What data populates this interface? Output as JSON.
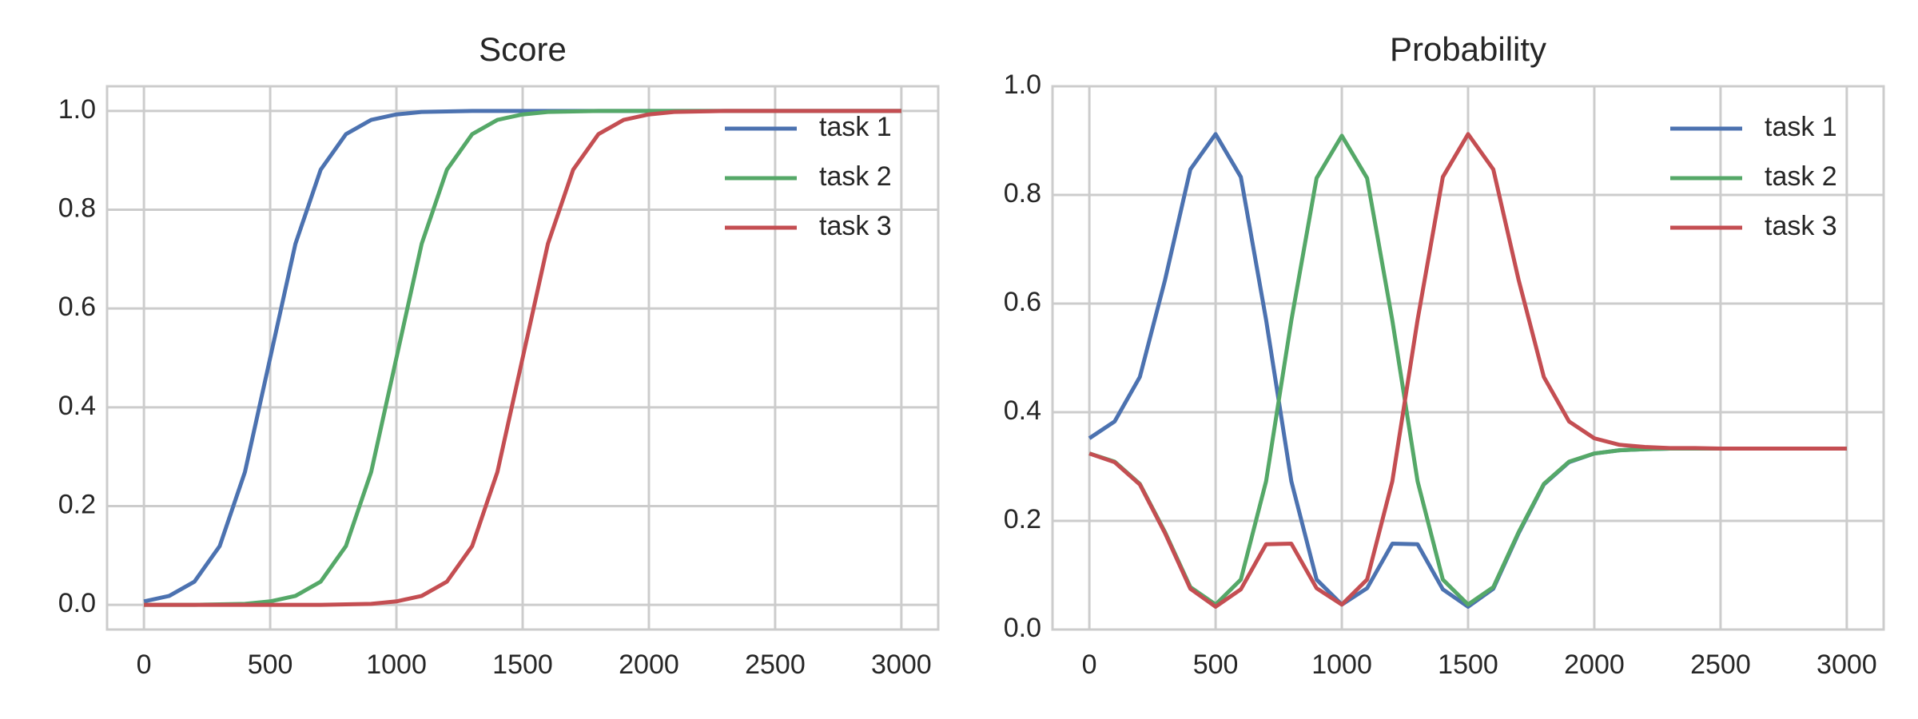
{
  "chart_data": [
    {
      "type": "line",
      "title": "Score",
      "x": [
        0,
        100,
        200,
        300,
        400,
        500,
        600,
        700,
        800,
        900,
        1000,
        1100,
        1200,
        1300,
        1400,
        1500,
        1600,
        1700,
        1800,
        1900,
        2000,
        2100,
        2200,
        2300,
        2400,
        2500,
        2600,
        2700,
        2800,
        2900,
        3000
      ],
      "series": [
        {
          "name": "task 1",
          "color": "#4c72b0",
          "values": [
            0.007,
            0.018,
            0.047,
            0.119,
            0.269,
            0.5,
            0.731,
            0.881,
            0.953,
            0.982,
            0.993,
            0.998,
            0.999,
            1,
            1,
            1,
            1,
            1,
            1,
            1,
            1,
            1,
            1,
            1,
            1,
            1,
            1,
            1,
            1,
            1,
            1
          ]
        },
        {
          "name": "task 2",
          "color": "#55a868",
          "values": [
            0,
            0,
            0,
            0.001,
            0.002,
            0.007,
            0.018,
            0.047,
            0.119,
            0.269,
            0.5,
            0.731,
            0.881,
            0.953,
            0.982,
            0.993,
            0.998,
            0.999,
            1,
            1,
            1,
            1,
            1,
            1,
            1,
            1,
            1,
            1,
            1,
            1,
            1
          ]
        },
        {
          "name": "task 3",
          "color": "#c44e52",
          "values": [
            0,
            0,
            0,
            0,
            0,
            0,
            0,
            0,
            0.001,
            0.002,
            0.007,
            0.018,
            0.047,
            0.119,
            0.269,
            0.5,
            0.731,
            0.881,
            0.953,
            0.982,
            0.993,
            0.998,
            0.999,
            1,
            1,
            1,
            1,
            1,
            1,
            1,
            1
          ]
        }
      ],
      "xlim": [
        -146,
        3146
      ],
      "ylim": [
        -0.05,
        1.05
      ],
      "xticks": [
        0,
        500,
        1000,
        1500,
        2000,
        2500,
        3000
      ],
      "yticks": [
        {
          "value": 0,
          "label": "0.0"
        },
        {
          "value": 0.2,
          "label": "0.2"
        },
        {
          "value": 0.4,
          "label": "0.4"
        },
        {
          "value": 0.6,
          "label": "0.6"
        },
        {
          "value": 0.8,
          "label": "0.8"
        },
        {
          "value": 1,
          "label": "1.0"
        }
      ],
      "grid": true,
      "legend": "upper right"
    },
    {
      "type": "line",
      "title": "Probability",
      "x": [
        0,
        100,
        200,
        300,
        400,
        500,
        600,
        700,
        800,
        900,
        1000,
        1100,
        1200,
        1300,
        1400,
        1500,
        1600,
        1700,
        1800,
        1900,
        2000,
        2100,
        2200,
        2300,
        2400,
        2500,
        2600,
        2700,
        2800,
        2900,
        3000
      ],
      "series": [
        {
          "name": "task 1",
          "color": "#4c72b0",
          "values": [
            0.352,
            0.383,
            0.465,
            0.644,
            0.847,
            0.912,
            0.833,
            0.57,
            0.273,
            0.092,
            0.046,
            0.076,
            0.158,
            0.157,
            0.074,
            0.042,
            0.075,
            0.177,
            0.267,
            0.308,
            0.324,
            0.33,
            0.332,
            0.333,
            0.333,
            0.333,
            0.333,
            0.333,
            0.333,
            0.333,
            0.333
          ]
        },
        {
          "name": "task 2",
          "color": "#55a868",
          "values": [
            0.324,
            0.309,
            0.268,
            0.179,
            0.078,
            0.046,
            0.092,
            0.273,
            0.569,
            0.831,
            0.909,
            0.831,
            0.569,
            0.273,
            0.092,
            0.046,
            0.078,
            0.179,
            0.268,
            0.309,
            0.324,
            0.33,
            0.332,
            0.333,
            0.333,
            0.333,
            0.333,
            0.333,
            0.333,
            0.333,
            0.333
          ]
        },
        {
          "name": "task 3",
          "color": "#c44e52",
          "values": [
            0.324,
            0.308,
            0.267,
            0.177,
            0.075,
            0.042,
            0.074,
            0.157,
            0.158,
            0.076,
            0.046,
            0.092,
            0.273,
            0.57,
            0.833,
            0.912,
            0.847,
            0.644,
            0.465,
            0.383,
            0.352,
            0.34,
            0.336,
            0.334,
            0.334,
            0.333,
            0.333,
            0.333,
            0.333,
            0.333,
            0.333
          ]
        }
      ],
      "xlim": [
        -146,
        3146
      ],
      "ylim": [
        0,
        1
      ],
      "xticks": [
        0,
        500,
        1000,
        1500,
        2000,
        2500,
        3000
      ],
      "yticks": [
        {
          "value": 0,
          "label": "0.0"
        },
        {
          "value": 0.2,
          "label": "0.2"
        },
        {
          "value": 0.4,
          "label": "0.4"
        },
        {
          "value": 0.6,
          "label": "0.6"
        },
        {
          "value": 0.8,
          "label": "0.8"
        },
        {
          "value": 1,
          "label": "1.0"
        }
      ],
      "grid": true,
      "legend": "upper right"
    }
  ]
}
